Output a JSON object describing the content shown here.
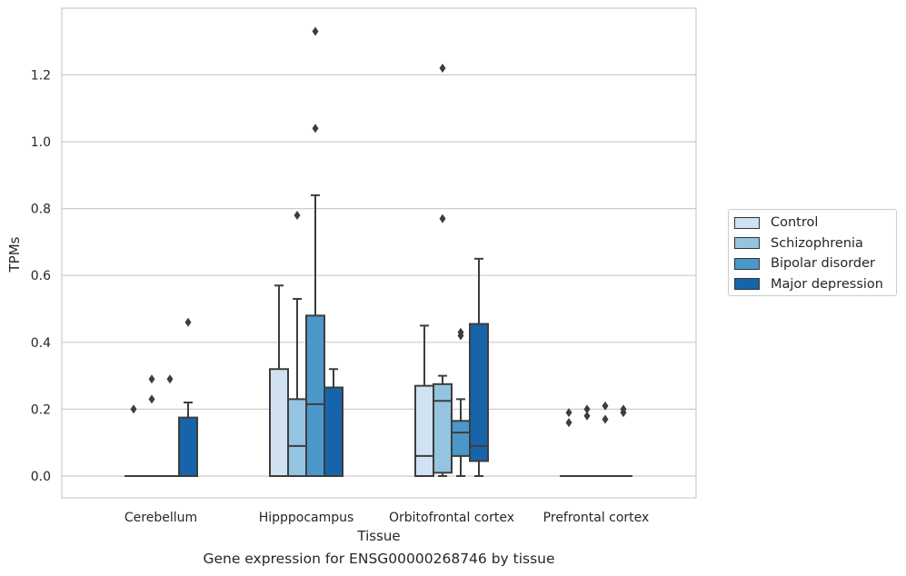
{
  "caption": "Gene expression for ENSG00000268746 by tissue",
  "chart_data": {
    "type": "box",
    "xlabel": "Tissue",
    "ylabel": "TPMs",
    "ylim": [
      -0.065,
      1.4
    ],
    "yticks": [
      "0.0",
      "0.2",
      "0.4",
      "0.6",
      "0.8",
      "1.0",
      "1.2"
    ],
    "categories": [
      "Cerebellum",
      "Hipppocampus",
      "Orbitofrontal cortex",
      "Prefrontal cortex"
    ],
    "grid": "horizontal",
    "legend_position": "right",
    "series": [
      {
        "name": "Control",
        "color": "#d0e1f2",
        "boxes": [
          {
            "q1": 0,
            "median": 0,
            "q3": 0,
            "whisker_low": 0,
            "whisker_high": 0,
            "outliers": [
              0.2
            ]
          },
          {
            "q1": 0,
            "median": 0,
            "q3": 0.32,
            "whisker_low": 0,
            "whisker_high": 0.57,
            "outliers": []
          },
          {
            "q1": 0,
            "median": 0.06,
            "q3": 0.27,
            "whisker_low": 0,
            "whisker_high": 0.45,
            "outliers": []
          },
          {
            "q1": 0,
            "median": 0,
            "q3": 0,
            "whisker_low": 0,
            "whisker_high": 0,
            "outliers": [
              0.16,
              0.19
            ]
          }
        ]
      },
      {
        "name": "Schizophrenia",
        "color": "#94c4df",
        "boxes": [
          {
            "q1": 0,
            "median": 0,
            "q3": 0,
            "whisker_low": 0,
            "whisker_high": 0,
            "outliers": [
              0.23,
              0.29
            ]
          },
          {
            "q1": 0,
            "median": 0.09,
            "q3": 0.23,
            "whisker_low": 0,
            "whisker_high": 0.53,
            "outliers": [
              0.78
            ]
          },
          {
            "q1": 0.01,
            "median": 0.225,
            "q3": 0.275,
            "whisker_low": 0,
            "whisker_high": 0.3,
            "outliers": [
              0.77,
              1.22
            ]
          },
          {
            "q1": 0,
            "median": 0,
            "q3": 0,
            "whisker_low": 0,
            "whisker_high": 0,
            "outliers": [
              0.18,
              0.2
            ]
          }
        ]
      },
      {
        "name": "Bipolar disorder",
        "color": "#4a98c9",
        "boxes": [
          {
            "q1": 0,
            "median": 0,
            "q3": 0,
            "whisker_low": 0,
            "whisker_high": 0,
            "outliers": [
              0.29
            ]
          },
          {
            "q1": 0,
            "median": 0.215,
            "q3": 0.48,
            "whisker_low": 0,
            "whisker_high": 0.84,
            "outliers": [
              1.04,
              1.33
            ]
          },
          {
            "q1": 0.06,
            "median": 0.13,
            "q3": 0.165,
            "whisker_low": 0,
            "whisker_high": 0.23,
            "outliers": [
              0.42,
              0.43
            ]
          },
          {
            "q1": 0,
            "median": 0,
            "q3": 0,
            "whisker_low": 0,
            "whisker_high": 0,
            "outliers": [
              0.17,
              0.21
            ]
          }
        ]
      },
      {
        "name": "Major depression",
        "color": "#1764ab",
        "boxes": [
          {
            "q1": 0,
            "median": 0,
            "q3": 0.175,
            "whisker_low": 0,
            "whisker_high": 0.22,
            "outliers": [
              0.46
            ]
          },
          {
            "q1": 0,
            "median": 0,
            "q3": 0.265,
            "whisker_low": 0,
            "whisker_high": 0.32,
            "outliers": []
          },
          {
            "q1": 0.045,
            "median": 0.09,
            "q3": 0.455,
            "whisker_low": 0,
            "whisker_high": 0.65,
            "outliers": []
          },
          {
            "q1": 0,
            "median": 0,
            "q3": 0,
            "whisker_low": 0,
            "whisker_high": 0,
            "outliers": [
              0.19,
              0.2
            ]
          }
        ]
      }
    ]
  }
}
